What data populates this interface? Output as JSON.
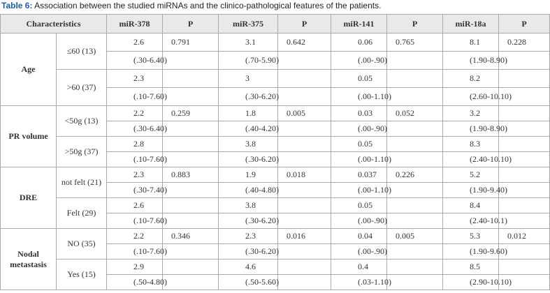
{
  "caption": {
    "label": "Table 6:",
    "text": "Association between the studied miRNAs and the clinico-pathological features of the patients."
  },
  "table": {
    "header": {
      "characteristics": "Characteristics",
      "columns": [
        "miR-378",
        "P",
        "miR-375",
        "P",
        "miR-141",
        "P",
        "miR-18a",
        "P"
      ]
    },
    "groups": [
      {
        "label": "Age",
        "subgroups": [
          {
            "label": "≤60 (13)",
            "lines": [
              [
                "2.6",
                "0.791",
                "3.1",
                "0.642",
                "0.06",
                "0.765",
                "8.1",
                "0.228"
              ],
              [
                "(.30-6.40)",
                null,
                "(.70-5.90)",
                null,
                "(.00-.90)",
                null,
                "(1.90-8.90)",
                null
              ]
            ]
          },
          {
            "label": ">60 (37)",
            "lines": [
              [
                "2.3",
                null,
                "3",
                null,
                "0.05",
                null,
                "8.2",
                null
              ],
              [
                "(.10-7.60)",
                null,
                "(.30-6.20)",
                null,
                "(.00-1.10)",
                null,
                "(2.60-10.10)",
                null
              ]
            ]
          }
        ]
      },
      {
        "label": "PR volume",
        "subgroups": [
          {
            "label": "<50g (13)",
            "lines": [
              [
                "2.2",
                "0.259",
                "1.8",
                "0.005",
                "0.03",
                "0.052",
                "3.2",
                null
              ],
              [
                "(.30-6.40)",
                null,
                "(.40-4.20)",
                null,
                "(.00-.90)",
                null,
                "(1.90-8.90)",
                null
              ]
            ]
          },
          {
            "label": ">50g (37)",
            "lines": [
              [
                "2.8",
                null,
                "3.8",
                null,
                "0.05",
                null,
                "8.3",
                null
              ],
              [
                "(.10-7.60)",
                null,
                "(.30-6.20)",
                null,
                "(.00-1.10)",
                null,
                "(2.40-10.10)",
                null
              ]
            ]
          }
        ]
      },
      {
        "label": "DRE",
        "subgroups": [
          {
            "label": "not felt (21)",
            "lines": [
              [
                "2.3",
                "0.883",
                "1.9",
                "0.018",
                "0.037",
                "0.226",
                "5.2",
                null
              ],
              [
                "(.30-7.40)",
                null,
                "(.40-4.80)",
                null,
                "(.00-1.10)",
                null,
                "(1.90-9.40)",
                null
              ]
            ]
          },
          {
            "label": "Felt (29)",
            "lines": [
              [
                "2.6",
                null,
                "3.8",
                null,
                "0.05",
                null,
                "8.4",
                null
              ],
              [
                "(.10-7.60)",
                null,
                "(.30-6.20)",
                null,
                "(.00-.90)",
                null,
                "(2.40-10.1)",
                null
              ]
            ]
          }
        ]
      },
      {
        "label": "Nodal metastasis",
        "subgroups": [
          {
            "label": "NO (35)",
            "lines": [
              [
                "2.2",
                "0.346",
                "2.3",
                "0.016",
                "0.04",
                "0.005",
                "5.3",
                "0.012"
              ],
              [
                "(.10-7.60)",
                null,
                "(.30-6.20)",
                null,
                "(.00-.90)",
                null,
                "(1.90-9.60)",
                null
              ]
            ]
          },
          {
            "label": "Yes (15)",
            "lines": [
              [
                "2.9",
                null,
                "4.6",
                null,
                "0.4",
                null,
                "8.5",
                null
              ],
              [
                "(.50-4.80)",
                null,
                "(.50-5.60)",
                null,
                "(.03-1.10)",
                null,
                "(2.90-10.10)",
                null
              ]
            ]
          }
        ]
      }
    ]
  }
}
